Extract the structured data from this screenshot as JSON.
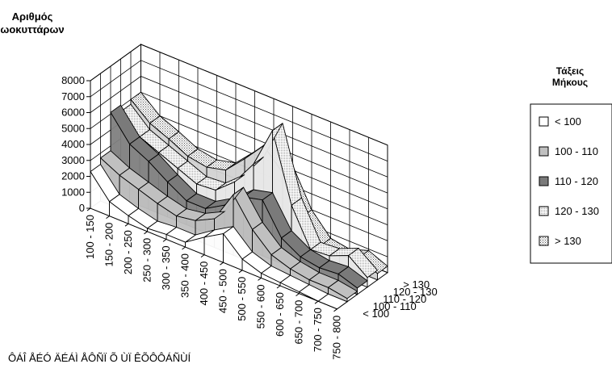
{
  "chart_data": {
    "type": "3d-surface",
    "title": "",
    "zlabel": [
      "Αριθμός",
      "ωοκυττάρων"
    ],
    "xlabel": "ÔÁÎ ÅÉÓ ÄÉÁÌ ÅÔÑÏ Õ ÙÏ ÊÕÔÔÁÑÙÍ",
    "zlim": [
      0,
      8000
    ],
    "zticks": [
      "0",
      "1000",
      "2000",
      "3000",
      "4000",
      "5000",
      "6000",
      "7000",
      "8000"
    ],
    "categories": [
      "100 - 150",
      "150 - 200",
      "200 - 250",
      "250 - 300",
      "300 - 350",
      "350 - 400",
      "400 - 450",
      "450 - 500",
      "500 - 550",
      "550 - 600",
      "600 - 650",
      "650 - 700",
      "700 - 750",
      "750 - 800"
    ],
    "legend_title": [
      "Τάξεις",
      "Μήκους"
    ],
    "legend_position": "right",
    "grid": true,
    "series": [
      {
        "name": "< 100",
        "color": "#ffffff",
        "values": [
          2300,
          900,
          500,
          200,
          300,
          300,
          1100,
          1800,
          700,
          300,
          200,
          100,
          0,
          0
        ]
      },
      {
        "name": "100 - 110",
        "color": "#c0c0c0",
        "values": [
          2700,
          2100,
          1700,
          1300,
          1000,
          1200,
          1800,
          3800,
          2100,
          1000,
          600,
          400,
          400,
          200
        ]
      },
      {
        "name": "110 - 120",
        "color": "#808080",
        "values": [
          5100,
          3600,
          3000,
          2200,
          1500,
          1500,
          2200,
          3200,
          3500,
          1600,
          900,
          700,
          800,
          400
        ]
      },
      {
        "name": "120 - 130",
        "color": "#e8e8e8",
        "values": [
          4700,
          3600,
          3100,
          2600,
          2100,
          2200,
          3200,
          4800,
          7400,
          3200,
          900,
          1000,
          1500,
          600
        ]
      },
      {
        "name": "> 130",
        "color": "#d2d2d2",
        "values": [
          5000,
          4000,
          3500,
          2900,
          2700,
          3000,
          4200,
          5500,
          4300,
          2000,
          700,
          500,
          900,
          400
        ]
      }
    ]
  }
}
